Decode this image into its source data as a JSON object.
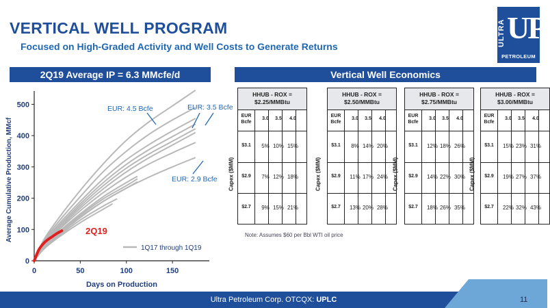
{
  "header": {
    "title": "VERTICAL WELL PROGRAM",
    "subtitle": "Focused on High-Graded Activity and Well Costs to Generate Returns"
  },
  "logo": {
    "ultra": "ULTRA",
    "up": "UP",
    "petroleum": "PETROLEUM"
  },
  "left_panel": {
    "heading": "2Q19 Average IP = 6.3 MMcfe/d"
  },
  "right_panel": {
    "heading": "Vertical Well Economics"
  },
  "chart_data": {
    "type": "line",
    "xlabel": "Days on Production",
    "ylabel": "Average Cumulative Production, MMcf",
    "xlim": [
      0,
      190
    ],
    "ylim": [
      0,
      560
    ],
    "x_ticks": [
      0,
      50,
      100,
      150
    ],
    "y_ticks": [
      0,
      100,
      200,
      300,
      400,
      500
    ],
    "grid": false,
    "legend": "bottom-right",
    "legend_label": "1Q17 through 1Q19",
    "highlight_label": "2Q19",
    "annotations": [
      "EUR: 4.5 Bcfe",
      "EUR: 3.5 Bcfe",
      "EUR: 2.9 Bcfe"
    ],
    "colors": {
      "history": "#b8b8b8",
      "highlight": "#e02020",
      "annotation": "#1f67b3"
    },
    "series": [
      {
        "x": [
          0,
          10,
          25,
          50,
          75,
          100,
          125,
          150,
          175
        ],
        "y": [
          0,
          65,
          130,
          225,
          310,
          385,
          445,
          495,
          545
        ]
      },
      {
        "x": [
          0,
          10,
          25,
          50,
          75,
          100,
          125,
          150,
          175
        ],
        "y": [
          0,
          60,
          120,
          205,
          285,
          350,
          405,
          450,
          490
        ]
      },
      {
        "x": [
          0,
          10,
          25,
          50,
          75,
          100,
          125,
          150,
          175
        ],
        "y": [
          0,
          55,
          112,
          190,
          262,
          323,
          372,
          415,
          455
        ]
      },
      {
        "x": [
          0,
          10,
          25,
          50,
          75,
          100,
          125,
          150,
          175
        ],
        "y": [
          0,
          52,
          106,
          182,
          250,
          308,
          356,
          397,
          437
        ]
      },
      {
        "x": [
          0,
          10,
          25,
          50,
          75,
          100,
          125,
          150,
          175
        ],
        "y": [
          0,
          50,
          102,
          175,
          240,
          296,
          342,
          382,
          422
        ]
      },
      {
        "x": [
          0,
          10,
          25,
          50,
          75,
          100,
          125,
          150,
          175
        ],
        "y": [
          0,
          48,
          98,
          168,
          230,
          284,
          330,
          370,
          410
        ]
      },
      {
        "x": [
          0,
          10,
          25,
          50,
          75,
          100,
          125,
          150,
          175
        ],
        "y": [
          0,
          46,
          94,
          160,
          218,
          268,
          310,
          345,
          378
        ]
      },
      {
        "x": [
          0,
          10,
          25,
          50,
          75,
          100,
          125,
          150,
          175
        ],
        "y": [
          0,
          40,
          82,
          140,
          190,
          232,
          268,
          300,
          330
        ]
      },
      {
        "x": [
          0,
          10,
          25,
          50,
          75,
          100,
          112
        ],
        "y": [
          0,
          44,
          88,
          150,
          205,
          250,
          270
        ]
      },
      {
        "x": [
          0,
          10,
          25,
          50,
          75,
          100,
          112
        ],
        "y": [
          0,
          42,
          85,
          145,
          198,
          240,
          262
        ]
      },
      {
        "x": [
          0,
          10,
          25,
          50,
          75,
          100,
          112
        ],
        "y": [
          0,
          40,
          80,
          138,
          190,
          232,
          252
        ]
      },
      {
        "x": [
          0,
          10,
          25,
          50,
          75,
          90
        ],
        "y": [
          0,
          38,
          76,
          130,
          175,
          198
        ]
      },
      {
        "x": [
          0,
          10,
          25,
          50,
          75,
          85
        ],
        "y": [
          0,
          36,
          72,
          122,
          165,
          182
        ]
      }
    ],
    "highlight_series": {
      "name": "2Q19",
      "x": [
        0,
        5,
        10,
        15,
        20,
        25,
        30
      ],
      "y": [
        0,
        35,
        55,
        68,
        78,
        88,
        96
      ]
    }
  },
  "economics": {
    "tables": [
      {
        "header": "HHUB - ROX =\n$2.25/MMBtu",
        "eur_label": "EUR\nBcfe",
        "eur_values": [
          "3.0",
          "3.5",
          "4.0"
        ],
        "rows": [
          {
            "capex": "$3.1",
            "values": [
              "5%",
              "10%",
              "15%"
            ]
          },
          {
            "capex": "$2.9",
            "values": [
              "7%",
              "12%",
              "18%"
            ]
          },
          {
            "capex": "$2.7",
            "values": [
              "9%",
              "15%",
              "21%"
            ]
          }
        ]
      },
      {
        "header": "HHUB - ROX =\n$2.50/MMBtu",
        "eur_label": "EUR\nBcfe",
        "eur_values": [
          "3.0",
          "3.5",
          "4.0"
        ],
        "rows": [
          {
            "capex": "$3.1",
            "values": [
              "8%",
              "14%",
              "20%"
            ]
          },
          {
            "capex": "$2.9",
            "values": [
              "11%",
              "17%",
              "24%"
            ]
          },
          {
            "capex": "$2.7",
            "values": [
              "13%",
              "20%",
              "28%"
            ]
          }
        ]
      },
      {
        "header": "HHUB - ROX =\n$2.75/MMBtu",
        "eur_label": "EUR\nBcfe",
        "eur_values": [
          "3.0",
          "3.5",
          "4.0"
        ],
        "rows": [
          {
            "capex": "$3.1",
            "values": [
              "12%",
              "18%",
              "26%"
            ]
          },
          {
            "capex": "$2.9",
            "values": [
              "14%",
              "22%",
              "30%"
            ]
          },
          {
            "capex": "$2.7",
            "values": [
              "18%",
              "26%",
              "35%"
            ]
          }
        ]
      },
      {
        "header": "HHUB - ROX =\n$3.00/MMBtu",
        "eur_label": "EUR\nBcfe",
        "eur_values": [
          "3.0",
          "3.5",
          "4.0"
        ],
        "rows": [
          {
            "capex": "$3.1",
            "values": [
              "15%",
              "23%",
              "31%"
            ]
          },
          {
            "capex": "$2.9",
            "values": [
              "19%",
              "27%",
              "37%"
            ]
          },
          {
            "capex": "$2.7",
            "values": [
              "22%",
              "32%",
              "43%"
            ]
          }
        ]
      }
    ],
    "capex_label": "Capex ($MM)",
    "note": "Note: Assumes $60 per Bbl WTI oil price"
  },
  "footer": {
    "company": "Ultra Petroleum Corp. OTCQX: ",
    "ticker": "UPLC",
    "page": "11"
  }
}
